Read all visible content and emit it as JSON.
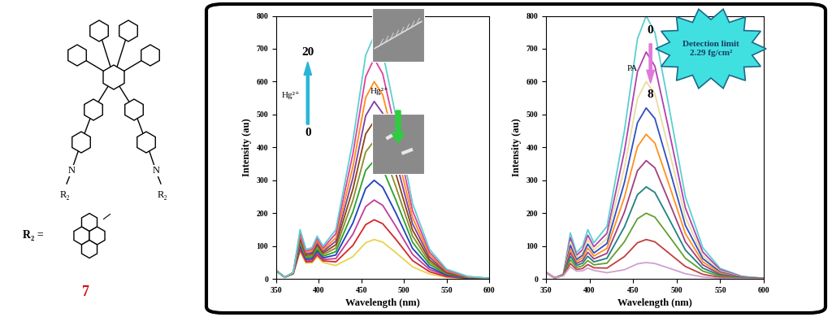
{
  "chart_data": [
    {
      "type": "line",
      "x": [
        350,
        360,
        370,
        378,
        385,
        392,
        398,
        405,
        420,
        440,
        455,
        465,
        475,
        490,
        510,
        530,
        550,
        575,
        600
      ],
      "xlim": [
        350,
        600
      ],
      "xticks": [
        350,
        400,
        450,
        500,
        550,
        600
      ],
      "ylim": [
        0,
        800
      ],
      "yticks": [
        0,
        100,
        200,
        300,
        400,
        500,
        600,
        700,
        800
      ],
      "x_label": "Wavelength (nm)",
      "y_label": "Intensity (au)",
      "annotations": [
        "20",
        "0",
        "Hg²⁺",
        "Hg²⁺"
      ],
      "series": [
        {
          "color": "#e8d44d",
          "values": [
            25,
            5,
            16,
            83,
            48,
            49,
            67,
            50,
            41,
            68,
            110,
            120,
            112,
            81,
            37,
            15,
            5,
            1,
            0
          ]
        },
        {
          "color": "#d62728",
          "values": [
            25,
            5,
            16,
            89,
            52,
            53,
            73,
            55,
            52,
            102,
            165,
            180,
            168,
            122,
            56,
            22,
            7,
            2,
            0
          ]
        },
        {
          "color": "#c43c9a",
          "values": [
            25,
            5,
            17,
            96,
            56,
            58,
            79,
            59,
            62,
            136,
            220,
            240,
            224,
            162,
            75,
            29,
            10,
            3,
            1
          ]
        },
        {
          "color": "#1f3fbf",
          "values": [
            25,
            5,
            17,
            102,
            60,
            62,
            85,
            64,
            73,
            170,
            275,
            300,
            279,
            203,
            93,
            36,
            12,
            3,
            1
          ]
        },
        {
          "color": "#2ca02c",
          "values": [
            25,
            5,
            17,
            109,
            64,
            67,
            91,
            69,
            83,
            204,
            330,
            360,
            335,
            243,
            112,
            44,
            15,
            4,
            1
          ]
        },
        {
          "color": "#8c8c2c",
          "values": [
            25,
            5,
            18,
            115,
            68,
            71,
            98,
            74,
            94,
            239,
            386,
            420,
            392,
            284,
            131,
            51,
            17,
            5,
            1
          ]
        },
        {
          "color": "#8b4513",
          "values": [
            25,
            5,
            18,
            122,
            72,
            76,
            104,
            79,
            104,
            273,
            441,
            480,
            448,
            324,
            149,
            58,
            19,
            5,
            1
          ]
        },
        {
          "color": "#7b3fa0",
          "values": [
            25,
            5,
            19,
            128,
            77,
            80,
            110,
            84,
            115,
            307,
            496,
            540,
            504,
            365,
            168,
            66,
            22,
            6,
            1
          ]
        },
        {
          "color": "#ff8c1a",
          "values": [
            25,
            5,
            19,
            135,
            81,
            85,
            116,
            89,
            125,
            341,
            551,
            600,
            560,
            405,
            187,
            73,
            24,
            6,
            2
          ]
        },
        {
          "color": "#e0409f",
          "values": [
            25,
            5,
            20,
            142,
            85,
            90,
            123,
            94,
            138,
            380,
            615,
            670,
            624,
            452,
            208,
            81,
            27,
            7,
            2
          ]
        },
        {
          "color": "#5ccfcf",
          "values": [
            25,
            5,
            20,
            150,
            90,
            95,
            130,
            100,
            150,
            420,
            680,
            740,
            690,
            500,
            230,
            90,
            30,
            8,
            2
          ]
        }
      ]
    },
    {
      "type": "line",
      "x": [
        350,
        360,
        370,
        378,
        385,
        392,
        398,
        405,
        420,
        440,
        455,
        465,
        475,
        490,
        510,
        530,
        550,
        575,
        600
      ],
      "xlim": [
        350,
        600
      ],
      "xticks": [
        350,
        400,
        450,
        500,
        550,
        600
      ],
      "ylim": [
        0,
        800
      ],
      "yticks": [
        0,
        100,
        200,
        300,
        400,
        500,
        600,
        700,
        800
      ],
      "x_label": "Wavelength (nm)",
      "y_label": "Intensity (au)",
      "annotations": [
        "0",
        "8",
        "PA",
        "Detection limit\n2.29 fg/cm²"
      ],
      "series": [
        {
          "color": "#5ccfcf",
          "values": [
            20,
            3,
            15,
            140,
            80,
            100,
            150,
            110,
            160,
            450,
            730,
            800,
            750,
            540,
            250,
            95,
            32,
            8,
            2
          ]
        },
        {
          "color": "#b040b0",
          "values": [
            20,
            3,
            14,
            125,
            72,
            89,
            133,
            98,
            139,
            388,
            630,
            690,
            647,
            466,
            216,
            82,
            28,
            7,
            2
          ]
        },
        {
          "color": "#e8dca0",
          "values": [
            20,
            3,
            14,
            113,
            65,
            80,
            119,
            88,
            123,
            338,
            548,
            600,
            563,
            405,
            188,
            71,
            24,
            6,
            2
          ]
        },
        {
          "color": "#3050c0",
          "values": [
            20,
            3,
            13,
            102,
            59,
            72,
            106,
            79,
            108,
            293,
            475,
            520,
            488,
            351,
            163,
            62,
            21,
            5,
            1
          ]
        },
        {
          "color": "#ff9020",
          "values": [
            20,
            3,
            13,
            91,
            53,
            64,
            94,
            70,
            93,
            248,
            402,
            440,
            413,
            297,
            138,
            52,
            18,
            4,
            1
          ]
        },
        {
          "color": "#a04080",
          "values": [
            20,
            3,
            12,
            80,
            47,
            56,
            81,
            61,
            78,
            203,
            329,
            360,
            338,
            243,
            113,
            43,
            14,
            4,
            1
          ]
        },
        {
          "color": "#208080",
          "values": [
            20,
            3,
            12,
            69,
            41,
            48,
            69,
            52,
            63,
            158,
            256,
            280,
            263,
            189,
            88,
            33,
            11,
            3,
            1
          ]
        },
        {
          "color": "#60a030",
          "values": [
            20,
            3,
            11,
            58,
            35,
            40,
            56,
            43,
            48,
            113,
            183,
            200,
            188,
            135,
            63,
            24,
            8,
            2,
            1
          ]
        },
        {
          "color": "#c04040",
          "values": [
            20,
            3,
            11,
            47,
            29,
            32,
            44,
            34,
            33,
            68,
            110,
            120,
            113,
            81,
            38,
            14,
            5,
            1,
            0
          ]
        },
        {
          "color": "#d0a0d0",
          "values": [
            20,
            3,
            10,
            37,
            24,
            25,
            33,
            26,
            19,
            28,
            46,
            50,
            47,
            34,
            16,
            6,
            2,
            1,
            0
          ]
        }
      ]
    }
  ],
  "structure": {
    "compound": "7",
    "atoms": [
      "N",
      "N"
    ],
    "substituents": [
      "R₂",
      "R₂"
    ],
    "definition": "R₂ ="
  }
}
